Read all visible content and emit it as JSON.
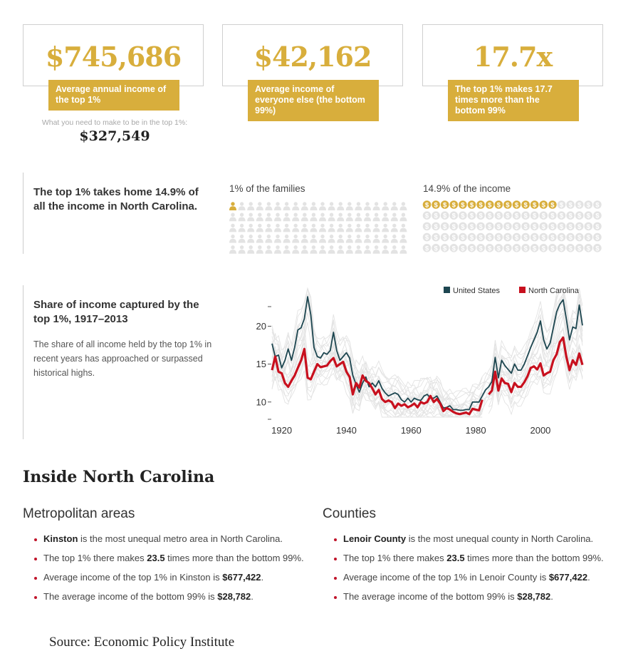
{
  "stats": [
    {
      "value": "$745,686",
      "label": "Average annual income of the top 1%"
    },
    {
      "value": "$42,162",
      "label": "Average income of everyone else (the bottom 99%)"
    },
    {
      "value": "17.7x",
      "label": "The top 1% makes 17.7 times more than the bottom 99%"
    }
  ],
  "threshold": {
    "label": "What you need to make to be in the top 1%:",
    "value": "$327,549"
  },
  "share_section": {
    "headline": "The top 1% takes home 14.9% of all the income in North Carolina.",
    "families_label": "1% of the families",
    "income_label": "14.9% of the income",
    "income_glyph": "$",
    "families_filled": 1,
    "families_total": 100,
    "income_filled": 15,
    "income_total": 100
  },
  "chart_section": {
    "headline": "Share of income captured by the top 1%, 1917–2013",
    "description": "The share of all income held by the top 1% in recent years has approached or surpassed historical highs."
  },
  "chart_data": {
    "type": "line",
    "title": "",
    "xlim": [
      1917,
      2013
    ],
    "ylim": [
      8,
      24
    ],
    "xticks": [
      1920,
      1940,
      1960,
      1980,
      2000
    ],
    "yticks": [
      10,
      15,
      20
    ],
    "legend_position": "top-right",
    "grid": false,
    "colors": {
      "United States": "#1d4650",
      "North Carolina": "#c8101e",
      "states": "#e3e3e3"
    },
    "series": [
      {
        "name": "United States",
        "x": [
          1917,
          1918,
          1919,
          1920,
          1921,
          1922,
          1923,
          1924,
          1925,
          1926,
          1927,
          1928,
          1929,
          1930,
          1931,
          1932,
          1933,
          1934,
          1935,
          1936,
          1937,
          1938,
          1939,
          1940,
          1941,
          1942,
          1943,
          1944,
          1945,
          1946,
          1947,
          1948,
          1949,
          1950,
          1951,
          1952,
          1953,
          1954,
          1955,
          1956,
          1957,
          1958,
          1959,
          1960,
          1961,
          1962,
          1963,
          1964,
          1965,
          1966,
          1967,
          1968,
          1969,
          1970,
          1971,
          1972,
          1973,
          1974,
          1975,
          1976,
          1977,
          1978,
          1979,
          1980,
          1981,
          1982,
          1983,
          1984,
          1985,
          1986,
          1987,
          1988,
          1989,
          1990,
          1991,
          1992,
          1993,
          1994,
          1995,
          1996,
          1997,
          1998,
          1999,
          2000,
          2001,
          2002,
          2003,
          2004,
          2005,
          2006,
          2007,
          2008,
          2009,
          2010,
          2011,
          2012,
          2013
        ],
        "values": [
          17.7,
          16.0,
          16.2,
          14.5,
          15.5,
          17.0,
          15.5,
          17.2,
          19.5,
          19.8,
          21.0,
          23.9,
          21.5,
          17.2,
          16.0,
          15.8,
          16.5,
          16.3,
          16.8,
          19.2,
          16.8,
          15.5,
          16.0,
          16.5,
          15.8,
          13.5,
          12.3,
          11.3,
          12.5,
          13.3,
          12.0,
          12.5,
          12.0,
          12.8,
          11.8,
          11.2,
          10.8,
          11.0,
          11.2,
          11.0,
          10.3,
          10.0,
          10.5,
          10.0,
          10.5,
          10.3,
          10.2,
          10.8,
          11.0,
          10.5,
          10.5,
          10.8,
          10.0,
          9.2,
          9.3,
          9.5,
          9.0,
          9.0,
          8.9,
          8.9,
          9.0,
          9.0,
          10.0,
          10.0,
          10.0,
          10.8,
          11.6,
          12.0,
          12.7,
          15.9,
          13.2,
          15.5,
          14.8,
          14.3,
          13.8,
          15.0,
          14.2,
          14.2,
          15.0,
          16.1,
          17.2,
          18.2,
          19.2,
          20.7,
          18.2,
          17.0,
          17.8,
          19.8,
          21.9,
          22.9,
          23.5,
          21.0,
          18.2,
          19.9,
          19.7,
          22.8,
          20.1
        ]
      },
      {
        "name": "North Carolina",
        "x": [
          1917,
          1918,
          1919,
          1920,
          1921,
          1922,
          1923,
          1924,
          1925,
          1926,
          1927,
          1928,
          1929,
          1930,
          1931,
          1932,
          1933,
          1934,
          1935,
          1936,
          1937,
          1938,
          1939,
          1940,
          1941,
          1942,
          1943,
          1944,
          1945,
          1946,
          1947,
          1948,
          1949,
          1950,
          1951,
          1952,
          1953,
          1954,
          1955,
          1956,
          1957,
          1958,
          1959,
          1960,
          1961,
          1962,
          1963,
          1964,
          1965,
          1966,
          1967,
          1968,
          1969,
          1970,
          1971,
          1972,
          1973,
          1974,
          1975,
          1976,
          1977,
          1978,
          1979,
          1980,
          1981,
          1982,
          1983,
          1984,
          1985,
          1986,
          1987,
          1988,
          1989,
          1990,
          1991,
          1992,
          1993,
          1994,
          1995,
          1996,
          1997,
          1998,
          1999,
          2000,
          2001,
          2002,
          2003,
          2004,
          2005,
          2006,
          2007,
          2008,
          2009,
          2010,
          2011,
          2012,
          2013
        ],
        "values": [
          14.2,
          16.0,
          14.0,
          13.8,
          12.5,
          12.0,
          12.8,
          13.5,
          14.5,
          15.5,
          17.0,
          13.2,
          13.0,
          14.0,
          15.0,
          14.6,
          14.7,
          14.8,
          15.4,
          15.8,
          14.7,
          15.0,
          15.3,
          14.0,
          13.3,
          11.0,
          12.5,
          11.9,
          13.5,
          12.8,
          12.5,
          11.8,
          11.0,
          11.6,
          10.4,
          10.0,
          10.2,
          10.0,
          9.2,
          9.8,
          9.5,
          9.7,
          9.3,
          9.5,
          9.8,
          9.3,
          10.0,
          9.8,
          10.0,
          10.8,
          10.0,
          10.4,
          9.8,
          8.8,
          9.2,
          9.0,
          8.7,
          8.5,
          8.4,
          8.5,
          8.6,
          8.4,
          9.1,
          9.0,
          8.9,
          10.3,
          null,
          11.0,
          11.5,
          14.0,
          11.5,
          13.1,
          12.5,
          12.4,
          11.3,
          12.5,
          12.0,
          12.0,
          12.6,
          13.4,
          14.5,
          14.7,
          14.3,
          15.1,
          13.5,
          13.8,
          14.0,
          15.5,
          16.3,
          17.9,
          18.5,
          16.0,
          14.2,
          15.5,
          14.9,
          16.4,
          14.9
        ]
      }
    ]
  },
  "inside": {
    "title": "Inside North Carolina",
    "metro": {
      "title": "Metropolitan areas",
      "items": [
        [
          {
            "b": "Kinston"
          },
          {
            "t": " is the most unequal metro area in North Carolina."
          }
        ],
        [
          {
            "t": "The top 1% there makes "
          },
          {
            "b": "23.5"
          },
          {
            "t": " times more than the bottom 99%."
          }
        ],
        [
          {
            "t": "Average income of the top 1% in Kinston is "
          },
          {
            "b": "$677,422"
          },
          {
            "t": "."
          }
        ],
        [
          {
            "t": "The average income of the bottom 99% is "
          },
          {
            "b": "$28,782"
          },
          {
            "t": "."
          }
        ]
      ]
    },
    "counties": {
      "title": "Counties",
      "items": [
        [
          {
            "b": "Lenoir County"
          },
          {
            "t": " is the most unequal county in North Carolina."
          }
        ],
        [
          {
            "t": "The top 1% there makes "
          },
          {
            "b": "23.5"
          },
          {
            "t": " times more than the bottom 99%."
          }
        ],
        [
          {
            "t": "Average income of the top 1% in Lenoir County is "
          },
          {
            "b": "$677,422"
          },
          {
            "t": "."
          }
        ],
        [
          {
            "t": "The average income of the bottom 99% is "
          },
          {
            "b": "$28,782"
          },
          {
            "t": "."
          }
        ]
      ]
    }
  },
  "source": "Source: Economic Policy Institute"
}
